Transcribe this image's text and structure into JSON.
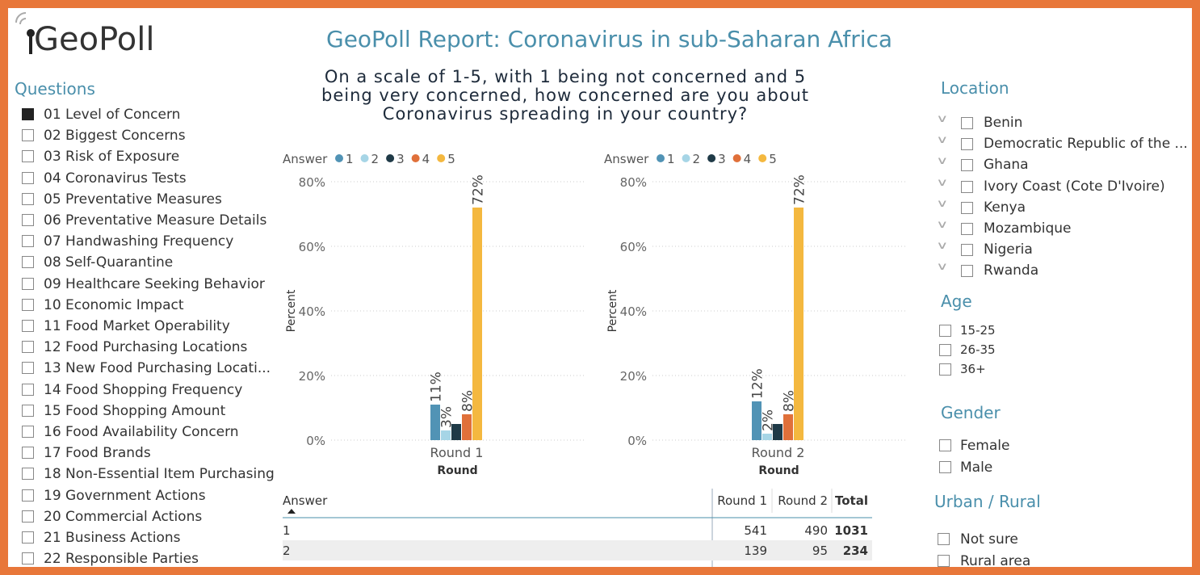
{
  "logo": "GeoPoll",
  "title": "GeoPoll Report: Coronavirus in sub-Saharan Africa",
  "question": "On a scale of 1-5, with 1 being not concerned and 5 being very concerned, how concerned are you about Coronavirus spreading in your country?",
  "questions": {
    "title": "Questions",
    "selected": 0,
    "items": [
      "01 Level of Concern",
      "02 Biggest Concerns",
      "03 Risk of Exposure",
      "04 Coronavirus Tests",
      "05 Preventative Measures",
      "06 Preventative Measure Details",
      "07 Handwashing Frequency",
      "08 Self-Quarantine",
      "09 Healthcare Seeking Behavior",
      "10 Economic Impact",
      "11 Food Market Operability",
      "12 Food Purchasing Locations",
      "13 New Food Purchasing Locati...",
      "14 Food Shopping Frequency",
      "15 Food Shopping Amount",
      "16 Food Availability Concern",
      "17 Food Brands",
      "18 Non-Essential Item Purchasing",
      "19 Government Actions",
      "20 Commercial Actions",
      "21 Business Actions",
      "22 Responsible Parties"
    ]
  },
  "chart_data": [
    {
      "type": "bar",
      "legend_title": "Answer",
      "x_label": "Round",
      "y_label": "Percent",
      "categories": [
        "Round 1"
      ],
      "ylim": [
        0,
        80
      ],
      "yticks": [
        {
          "value": 0,
          "label": "0%"
        },
        {
          "value": 20,
          "label": "20%"
        },
        {
          "value": 40,
          "label": "40%"
        },
        {
          "value": 60,
          "label": "60%"
        },
        {
          "value": 80,
          "label": "80%"
        }
      ],
      "grid": true,
      "series": [
        {
          "name": "1",
          "color": "#5193b5",
          "values": [
            11
          ],
          "value_labels": [
            "11%"
          ]
        },
        {
          "name": "2",
          "color": "#a6d5e6",
          "values": [
            3
          ],
          "value_labels": [
            "3%"
          ]
        },
        {
          "name": "3",
          "color": "#1f3a47",
          "values": [
            5
          ]
        },
        {
          "name": "4",
          "color": "#e0703a",
          "values": [
            8
          ],
          "value_labels": [
            "8%"
          ]
        },
        {
          "name": "5",
          "color": "#f4b83f",
          "values": [
            72
          ],
          "value_labels": [
            "72%"
          ]
        }
      ]
    },
    {
      "type": "bar",
      "legend_title": "Answer",
      "x_label": "Round",
      "y_label": "Percent",
      "categories": [
        "Round 2"
      ],
      "ylim": [
        0,
        80
      ],
      "yticks": [
        {
          "value": 0,
          "label": "0%"
        },
        {
          "value": 20,
          "label": "20%"
        },
        {
          "value": 40,
          "label": "40%"
        },
        {
          "value": 60,
          "label": "60%"
        },
        {
          "value": 80,
          "label": "80%"
        }
      ],
      "grid": true,
      "series": [
        {
          "name": "1",
          "color": "#5193b5",
          "values": [
            12
          ],
          "value_labels": [
            "12%"
          ]
        },
        {
          "name": "2",
          "color": "#a6d5e6",
          "values": [
            2
          ],
          "value_labels": [
            "2%"
          ]
        },
        {
          "name": "3",
          "color": "#1f3a47",
          "values": [
            5
          ]
        },
        {
          "name": "4",
          "color": "#e0703a",
          "values": [
            8
          ],
          "value_labels": [
            "8%"
          ]
        },
        {
          "name": "5",
          "color": "#f4b83f",
          "values": [
            72
          ],
          "value_labels": [
            "72%"
          ]
        }
      ]
    }
  ],
  "table": {
    "columns": [
      "Answer",
      "Round 1",
      "Round 2",
      "Total"
    ],
    "rows": [
      [
        1,
        541,
        490,
        1031
      ],
      [
        2,
        139,
        95,
        234
      ]
    ]
  },
  "filters": {
    "location": {
      "title": "Location",
      "items": [
        "Benin",
        "Democratic Republic of the ...",
        "Ghana",
        "Ivory Coast (Cote D'Ivoire)",
        "Kenya",
        "Mozambique",
        "Nigeria",
        "Rwanda"
      ]
    },
    "age": {
      "title": "Age",
      "items": [
        "15-25",
        "26-35",
        "36+"
      ]
    },
    "gender": {
      "title": "Gender",
      "items": [
        "Female",
        "Male"
      ]
    },
    "urban": {
      "title": "Urban / Rural",
      "items": [
        "Not sure",
        "Rural area"
      ]
    }
  }
}
